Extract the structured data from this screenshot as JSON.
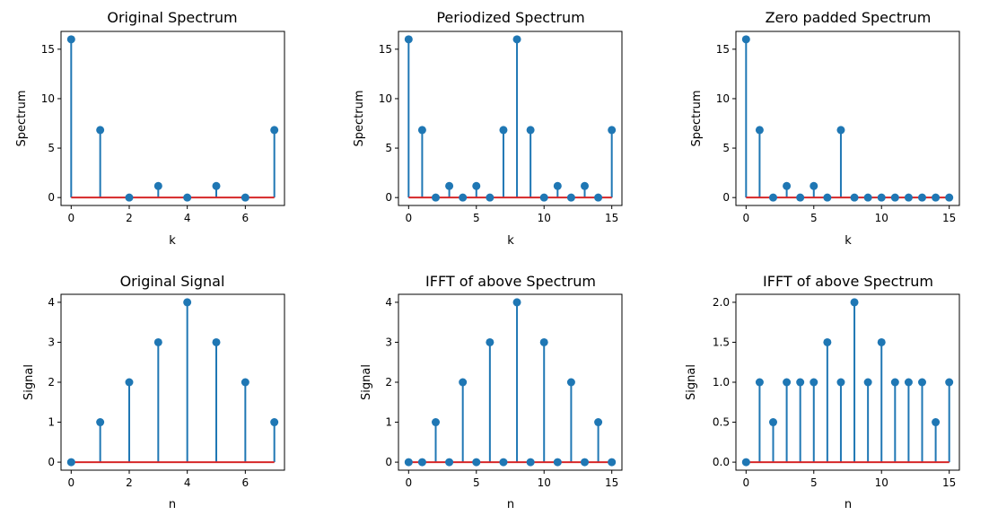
{
  "style": {
    "stem_color": "#1f77b4",
    "baseline_color": "#d62728"
  },
  "chart_data": [
    {
      "type": "stem",
      "title": "Original Spectrum",
      "xlabel": "k",
      "ylabel": "Spectrum",
      "x": [
        0,
        1,
        2,
        3,
        4,
        5,
        6,
        7
      ],
      "values": [
        16,
        6.83,
        0,
        1.17,
        0,
        1.17,
        0,
        6.83
      ],
      "xlim": [
        -0.35,
        7.35
      ],
      "ylim": [
        -0.8,
        16.8
      ],
      "xticks": [
        0,
        2,
        4,
        6
      ],
      "yticks": [
        0,
        5,
        10,
        15
      ],
      "xtick_labels": [
        "0",
        "2",
        "4",
        "6"
      ],
      "ytick_labels": [
        "0",
        "5",
        "10",
        "15"
      ]
    },
    {
      "type": "stem",
      "title": "Periodized Spectrum",
      "xlabel": "k",
      "ylabel": "Spectrum",
      "x": [
        0,
        1,
        2,
        3,
        4,
        5,
        6,
        7,
        8,
        9,
        10,
        11,
        12,
        13,
        14,
        15
      ],
      "values": [
        16,
        6.83,
        0,
        1.17,
        0,
        1.17,
        0,
        6.83,
        16,
        6.83,
        0,
        1.17,
        0,
        1.17,
        0,
        6.83
      ],
      "xlim": [
        -0.75,
        15.75
      ],
      "ylim": [
        -0.8,
        16.8
      ],
      "xticks": [
        0,
        5,
        10,
        15
      ],
      "yticks": [
        0,
        5,
        10,
        15
      ],
      "xtick_labels": [
        "0",
        "5",
        "10",
        "15"
      ],
      "ytick_labels": [
        "0",
        "5",
        "10",
        "15"
      ]
    },
    {
      "type": "stem",
      "title": "Zero padded Spectrum",
      "xlabel": "k",
      "ylabel": "Spectrum",
      "x": [
        0,
        1,
        2,
        3,
        4,
        5,
        6,
        7,
        8,
        9,
        10,
        11,
        12,
        13,
        14,
        15
      ],
      "values": [
        16,
        6.83,
        0,
        1.17,
        0,
        1.17,
        0,
        6.83,
        0,
        0,
        0,
        0,
        0,
        0,
        0,
        0
      ],
      "xlim": [
        -0.75,
        15.75
      ],
      "ylim": [
        -0.8,
        16.8
      ],
      "xticks": [
        0,
        5,
        10,
        15
      ],
      "yticks": [
        0,
        5,
        10,
        15
      ],
      "xtick_labels": [
        "0",
        "5",
        "10",
        "15"
      ],
      "ytick_labels": [
        "0",
        "5",
        "10",
        "15"
      ]
    },
    {
      "type": "stem",
      "title": "Original Signal",
      "xlabel": "n",
      "ylabel": "Signal",
      "x": [
        0,
        1,
        2,
        3,
        4,
        5,
        6,
        7
      ],
      "values": [
        0,
        1,
        2,
        3,
        4,
        3,
        2,
        1
      ],
      "xlim": [
        -0.35,
        7.35
      ],
      "ylim": [
        -0.2,
        4.2
      ],
      "xticks": [
        0,
        2,
        4,
        6
      ],
      "yticks": [
        0,
        1,
        2,
        3,
        4
      ],
      "xtick_labels": [
        "0",
        "2",
        "4",
        "6"
      ],
      "ytick_labels": [
        "0",
        "1",
        "2",
        "3",
        "4"
      ]
    },
    {
      "type": "stem",
      "title": "IFFT of above Spectrum",
      "xlabel": "n",
      "ylabel": "Signal",
      "x": [
        0,
        1,
        2,
        3,
        4,
        5,
        6,
        7,
        8,
        9,
        10,
        11,
        12,
        13,
        14,
        15
      ],
      "values": [
        0,
        0,
        1,
        0,
        2,
        0,
        3,
        0,
        4,
        0,
        3,
        0,
        2,
        0,
        1,
        0
      ],
      "xlim": [
        -0.75,
        15.75
      ],
      "ylim": [
        -0.2,
        4.2
      ],
      "xticks": [
        0,
        5,
        10,
        15
      ],
      "yticks": [
        0,
        1,
        2,
        3,
        4
      ],
      "xtick_labels": [
        "0",
        "5",
        "10",
        "15"
      ],
      "ytick_labels": [
        "0",
        "1",
        "2",
        "3",
        "4"
      ]
    },
    {
      "type": "stem",
      "title": "IFFT of above Spectrum",
      "xlabel": "n",
      "ylabel": "Signal",
      "x": [
        0,
        1,
        2,
        3,
        4,
        5,
        6,
        7,
        8,
        9,
        10,
        11,
        12,
        13,
        14,
        15
      ],
      "values": [
        0,
        1,
        0.5,
        1,
        1,
        1,
        1.5,
        1,
        2,
        1,
        1.5,
        1,
        1,
        1,
        0.5,
        1
      ],
      "xlim": [
        -0.75,
        15.75
      ],
      "ylim": [
        -0.1,
        2.1
      ],
      "xticks": [
        0,
        5,
        10,
        15
      ],
      "yticks": [
        0,
        0.5,
        1,
        1.5,
        2
      ],
      "xtick_labels": [
        "0",
        "5",
        "10",
        "15"
      ],
      "ytick_labels": [
        "0.0",
        "0.5",
        "1.0",
        "1.5",
        "2.0"
      ]
    }
  ]
}
